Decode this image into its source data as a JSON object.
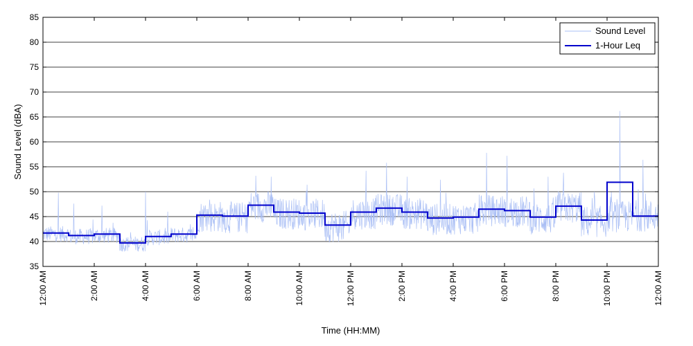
{
  "chart_data": {
    "type": "line",
    "title": "",
    "xlabel": "Time (HH:MM)",
    "ylabel": "Sound Level (dBA)",
    "ylim": [
      35,
      85
    ],
    "xlim_hours": [
      0,
      24
    ],
    "grid": "horizontal",
    "legend_position": "top-right",
    "y_ticks": [
      35,
      40,
      45,
      50,
      55,
      60,
      65,
      70,
      75,
      80,
      85
    ],
    "x_ticks": [
      {
        "hour": 0,
        "label": "12:00 AM"
      },
      {
        "hour": 2,
        "label": "2:00 AM"
      },
      {
        "hour": 4,
        "label": "4:00 AM"
      },
      {
        "hour": 6,
        "label": "6:00 AM"
      },
      {
        "hour": 8,
        "label": "8:00 AM"
      },
      {
        "hour": 10,
        "label": "10:00 AM"
      },
      {
        "hour": 12,
        "label": "12:00 PM"
      },
      {
        "hour": 14,
        "label": "2:00 PM"
      },
      {
        "hour": 16,
        "label": "4:00 PM"
      },
      {
        "hour": 18,
        "label": "6:00 PM"
      },
      {
        "hour": 20,
        "label": "8:00 PM"
      },
      {
        "hour": 22,
        "label": "10:00 PM"
      },
      {
        "hour": 24,
        "label": "12:00 AM"
      }
    ],
    "series": [
      {
        "name": "Sound Level",
        "color": "#aabff5",
        "style": "noisy-thin-line",
        "hourly_mean": [
          41.5,
          41.0,
          41.2,
          39.5,
          40.8,
          41.3,
          45.0,
          44.8,
          47.0,
          45.6,
          45.4,
          43.0,
          45.6,
          46.4,
          45.6,
          44.4,
          44.6,
          46.2,
          46.0,
          44.6,
          46.8,
          44.0,
          45.0,
          45.2
        ],
        "peaks": [
          {
            "hour": 0.6,
            "value": 49.8
          },
          {
            "hour": 1.2,
            "value": 47.6
          },
          {
            "hour": 2.3,
            "value": 47.2
          },
          {
            "hour": 4.0,
            "value": 50.0
          },
          {
            "hour": 6.5,
            "value": 48.4
          },
          {
            "hour": 8.3,
            "value": 53.2
          },
          {
            "hour": 8.9,
            "value": 53.0
          },
          {
            "hour": 10.3,
            "value": 51.4
          },
          {
            "hour": 12.6,
            "value": 54.2
          },
          {
            "hour": 13.4,
            "value": 55.8
          },
          {
            "hour": 14.2,
            "value": 53.0
          },
          {
            "hour": 15.5,
            "value": 52.4
          },
          {
            "hour": 17.3,
            "value": 57.8
          },
          {
            "hour": 18.1,
            "value": 57.2
          },
          {
            "hour": 19.7,
            "value": 53.0
          },
          {
            "hour": 20.3,
            "value": 53.8
          },
          {
            "hour": 21.5,
            "value": 50.0
          },
          {
            "hour": 22.5,
            "value": 66.2
          },
          {
            "hour": 23.4,
            "value": 56.4
          }
        ]
      },
      {
        "name": "1-Hour Leq",
        "color": "#0000cc",
        "style": "step",
        "x_hours": [
          0,
          1,
          2,
          3,
          4,
          5,
          6,
          7,
          8,
          9,
          10,
          11,
          12,
          13,
          14,
          15,
          16,
          17,
          18,
          19,
          20,
          21,
          22,
          23
        ],
        "values": [
          41.7,
          41.2,
          41.5,
          39.7,
          41.0,
          41.5,
          45.3,
          45.1,
          47.3,
          45.9,
          45.7,
          43.3,
          45.9,
          46.7,
          45.9,
          44.7,
          44.9,
          46.5,
          46.2,
          44.9,
          47.1,
          44.3,
          51.9,
          45.1
        ]
      }
    ]
  }
}
